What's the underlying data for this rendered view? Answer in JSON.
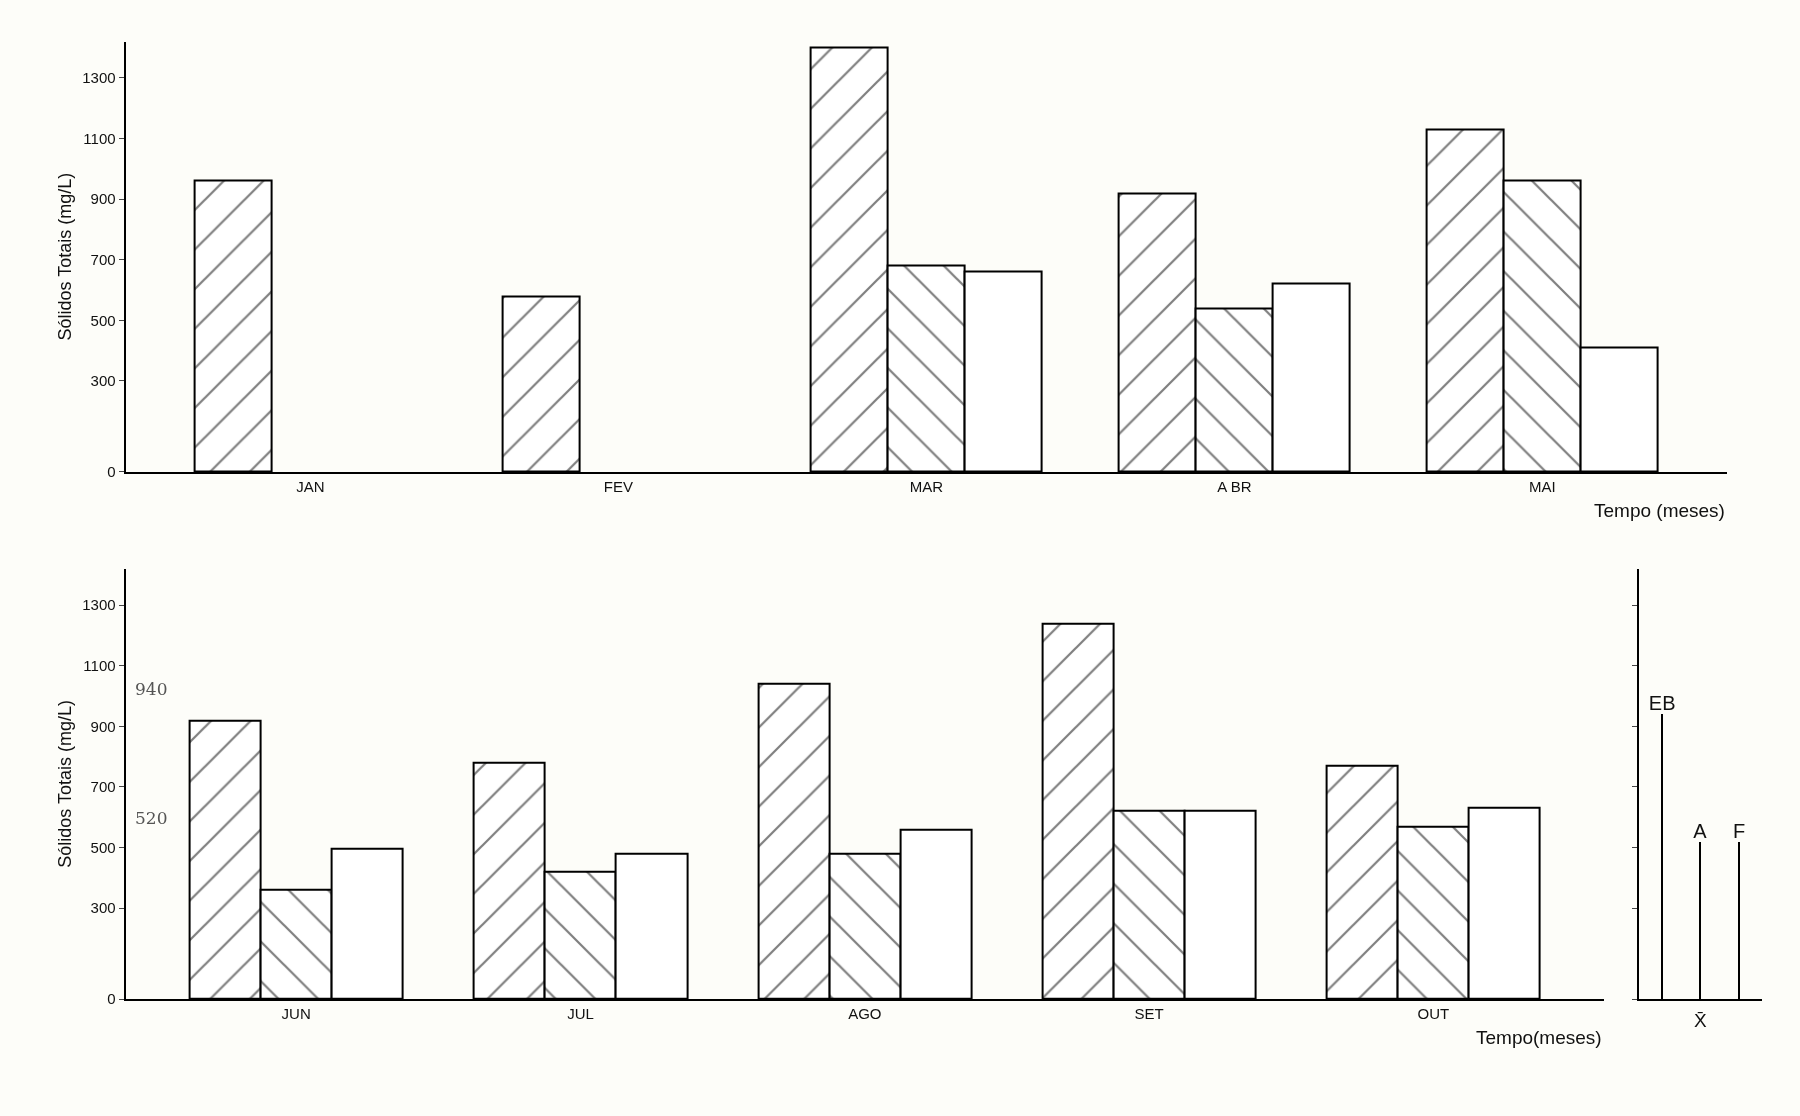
{
  "chart_data": [
    {
      "type": "bar",
      "ylabel": "Sólidos Totais (mg/L)",
      "xlabel": "Tempo (meses)",
      "categories": [
        "JAN",
        "FEV",
        "MAR",
        "A BR",
        "MAI"
      ],
      "ylim": [
        0,
        1420
      ],
      "yticks": [
        0,
        300,
        500,
        700,
        900,
        1100,
        1300
      ],
      "grid": false,
      "legend": false,
      "series": [
        {
          "color": "#000000",
          "values": [
            960,
            580,
            1400,
            920,
            1130
          ]
        },
        {
          "color": "#000000",
          "values": [
            null,
            null,
            680,
            540,
            960
          ]
        },
        {
          "color": "#000000",
          "values": [
            null,
            null,
            660,
            620,
            410
          ]
        }
      ]
    },
    {
      "type": "bar",
      "ylabel": "Sólidos Totais (mg/L)",
      "xlabel": "Tempo(meses)",
      "categories": [
        "JUN",
        "JUL",
        "AGO",
        "SET",
        "OUT"
      ],
      "ylim": [
        0,
        1420
      ],
      "yticks": [
        0,
        300,
        500,
        700,
        900,
        1100,
        1300
      ],
      "grid": false,
      "legend": false,
      "annotations": [
        "940",
        "520"
      ],
      "series": [
        {
          "color": "#000000",
          "values": [
            920,
            780,
            1040,
            1240,
            770
          ]
        },
        {
          "color": "#000000",
          "values": [
            360,
            420,
            480,
            620,
            570
          ]
        },
        {
          "color": "#000000",
          "values": [
            495,
            480,
            560,
            620,
            630
          ]
        }
      ]
    },
    {
      "type": "bar",
      "xlabel": "X̄",
      "categories": [
        "EB",
        "A",
        "F"
      ],
      "ylim": [
        0,
        1420
      ],
      "yticks": [
        0,
        300,
        500,
        700,
        900,
        1100,
        1300
      ],
      "tick_labels": "x",
      "grid": false,
      "legend": false,
      "series": [
        {
          "color": "#000000",
          "values": [
            940,
            520,
            520
          ]
        }
      ]
    }
  ]
}
